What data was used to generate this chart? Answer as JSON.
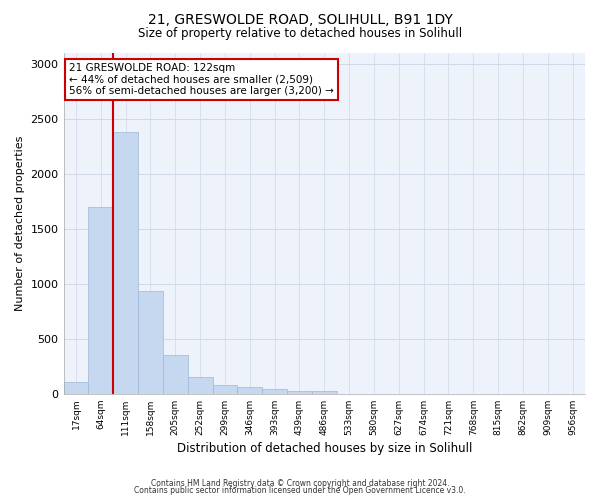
{
  "title1": "21, GRESWOLDE ROAD, SOLIHULL, B91 1DY",
  "title2": "Size of property relative to detached houses in Solihull",
  "xlabel": "Distribution of detached houses by size in Solihull",
  "ylabel": "Number of detached properties",
  "categories": [
    "17sqm",
    "64sqm",
    "111sqm",
    "158sqm",
    "205sqm",
    "252sqm",
    "299sqm",
    "346sqm",
    "393sqm",
    "439sqm",
    "486sqm",
    "533sqm",
    "580sqm",
    "627sqm",
    "674sqm",
    "721sqm",
    "768sqm",
    "815sqm",
    "862sqm",
    "909sqm",
    "956sqm"
  ],
  "values": [
    110,
    1700,
    2380,
    930,
    350,
    155,
    80,
    60,
    45,
    30,
    25,
    0,
    0,
    0,
    0,
    0,
    0,
    0,
    0,
    0,
    0
  ],
  "bar_color": "#c5d8f0",
  "bar_edge_color": "#9ab8d8",
  "grid_color": "#d0d8e8",
  "background_color": "#eef2fb",
  "red_line_index": 2,
  "red_line_color": "#cc0000",
  "annotation_line1": "21 GRESWOLDE ROAD: 122sqm",
  "annotation_line2": "← 44% of detached houses are smaller (2,509)",
  "annotation_line3": "56% of semi-detached houses are larger (3,200) →",
  "annotation_box_color": "#cc0000",
  "ylim": [
    0,
    3100
  ],
  "yticks": [
    0,
    500,
    1000,
    1500,
    2000,
    2500,
    3000
  ],
  "footnote1": "Contains HM Land Registry data © Crown copyright and database right 2024.",
  "footnote2": "Contains public sector information licensed under the Open Government Licence v3.0."
}
